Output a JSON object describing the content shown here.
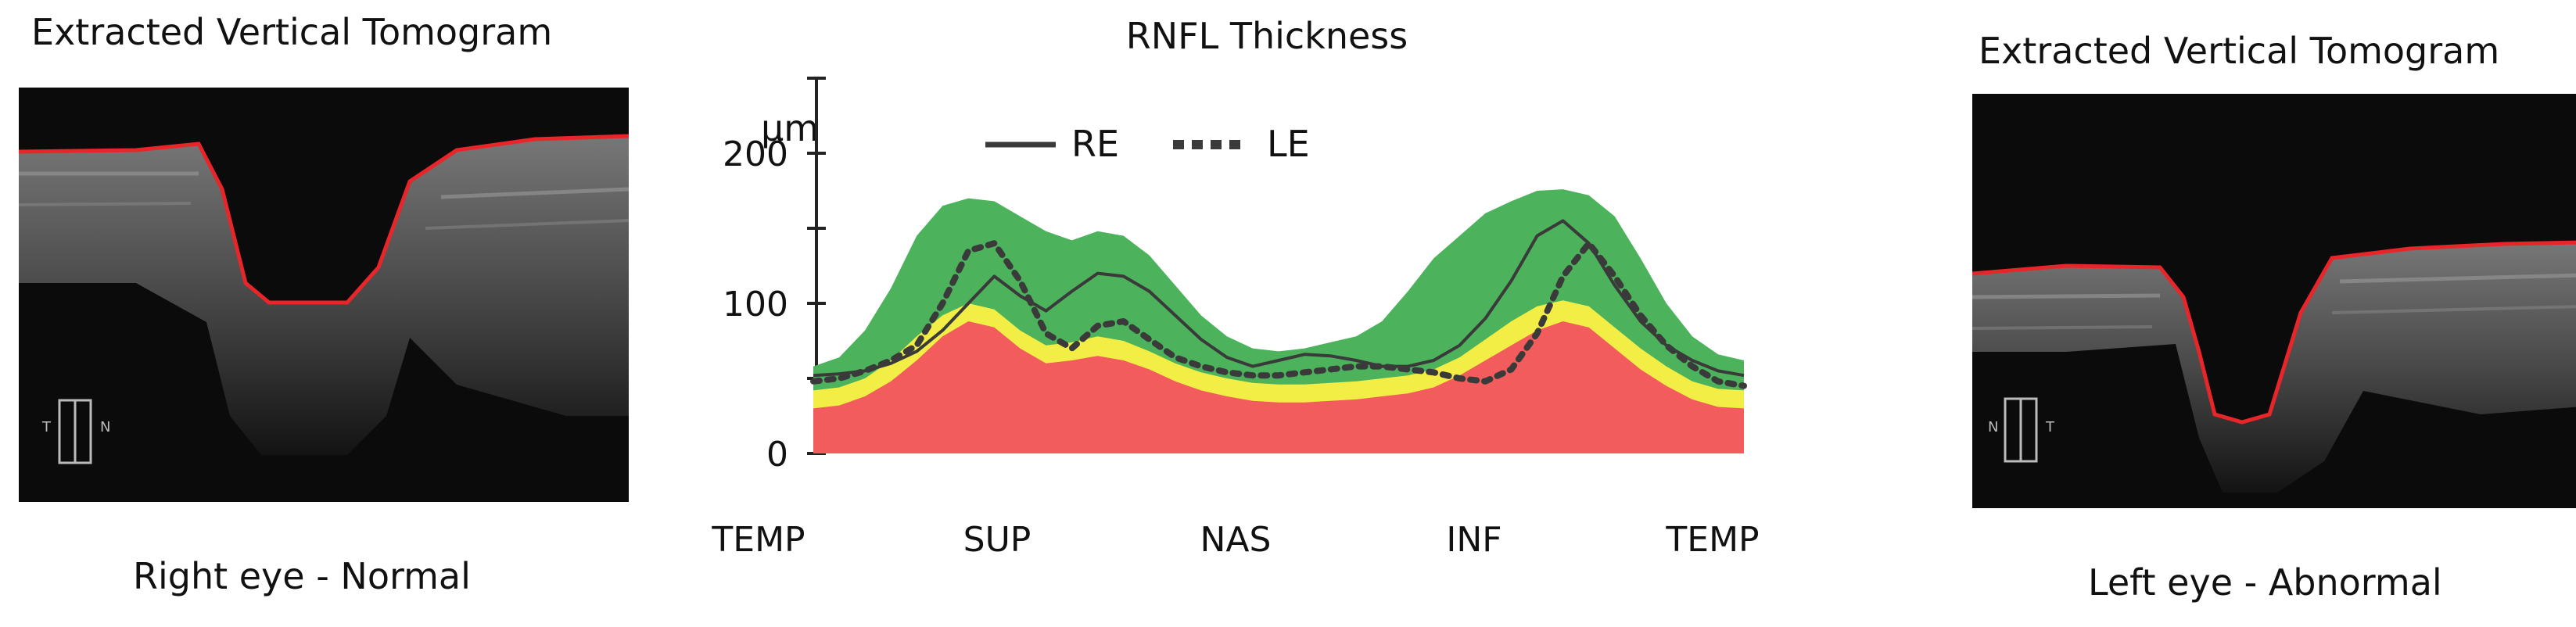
{
  "left_panel": {
    "title": "Extracted Vertical Tomogram",
    "caption": "Right eye - Normal",
    "scan_markers": [
      "T",
      "N"
    ]
  },
  "right_panel": {
    "title": "Extracted Vertical Tomogram",
    "caption": "Left eye - Abnormal",
    "scan_markers": [
      "N",
      "T"
    ]
  },
  "colors": {
    "normal_band": "#4cb35c",
    "borderline_band": "#f2ee45",
    "abnormal_band": "#f25c5c",
    "segmentation_line": "#e8262a",
    "series_line": "#3a3a3a"
  },
  "chart_data": {
    "type": "line",
    "title": "RNFL Thickness",
    "ylabel": "μm",
    "xlabel": "",
    "ylim": [
      0,
      250
    ],
    "yticks": [
      0,
      100,
      200
    ],
    "categories": [
      "TEMP",
      "SUP",
      "NAS",
      "INF",
      "TEMP"
    ],
    "x": [
      0,
      10,
      20,
      30,
      40,
      50,
      60,
      70,
      80,
      90,
      100,
      110,
      120,
      130,
      140,
      150,
      160,
      170,
      180,
      190,
      200,
      210,
      220,
      230,
      240,
      250,
      260,
      270,
      280,
      290,
      300,
      310,
      320,
      330,
      340,
      350,
      360
    ],
    "series": [
      {
        "name": "RE",
        "style": "solid",
        "values": [
          52,
          53,
          55,
          60,
          68,
          82,
          100,
          118,
          105,
          95,
          108,
          120,
          118,
          108,
          92,
          76,
          64,
          58,
          62,
          66,
          65,
          62,
          58,
          58,
          62,
          72,
          90,
          115,
          145,
          155,
          140,
          112,
          88,
          72,
          62,
          55,
          52
        ]
      },
      {
        "name": "LE",
        "style": "dotted",
        "values": [
          48,
          50,
          55,
          62,
          72,
          100,
          135,
          140,
          115,
          80,
          70,
          85,
          88,
          76,
          64,
          58,
          54,
          52,
          52,
          54,
          56,
          58,
          58,
          56,
          54,
          50,
          48,
          56,
          80,
          118,
          140,
          118,
          92,
          72,
          58,
          48,
          45
        ]
      }
    ],
    "bands": {
      "abnormal_upper": [
        30,
        32,
        38,
        48,
        62,
        78,
        88,
        84,
        70,
        60,
        62,
        65,
        62,
        56,
        48,
        42,
        38,
        35,
        34,
        34,
        35,
        36,
        38,
        40,
        44,
        52,
        62,
        72,
        82,
        88,
        84,
        70,
        56,
        45,
        36,
        31,
        30
      ],
      "borderline_upper": [
        42,
        44,
        50,
        62,
        78,
        92,
        100,
        96,
        82,
        72,
        74,
        78,
        75,
        68,
        60,
        54,
        50,
        47,
        46,
        46,
        47,
        48,
        50,
        52,
        56,
        64,
        76,
        88,
        98,
        102,
        98,
        84,
        70,
        58,
        48,
        43,
        42
      ],
      "normal_upper": [
        58,
        64,
        82,
        110,
        145,
        165,
        170,
        168,
        158,
        148,
        142,
        148,
        145,
        132,
        112,
        92,
        78,
        70,
        68,
        70,
        74,
        78,
        88,
        108,
        130,
        145,
        160,
        168,
        175,
        176,
        172,
        158,
        130,
        100,
        78,
        66,
        62
      ]
    },
    "legend_position": "top",
    "grid": false
  }
}
